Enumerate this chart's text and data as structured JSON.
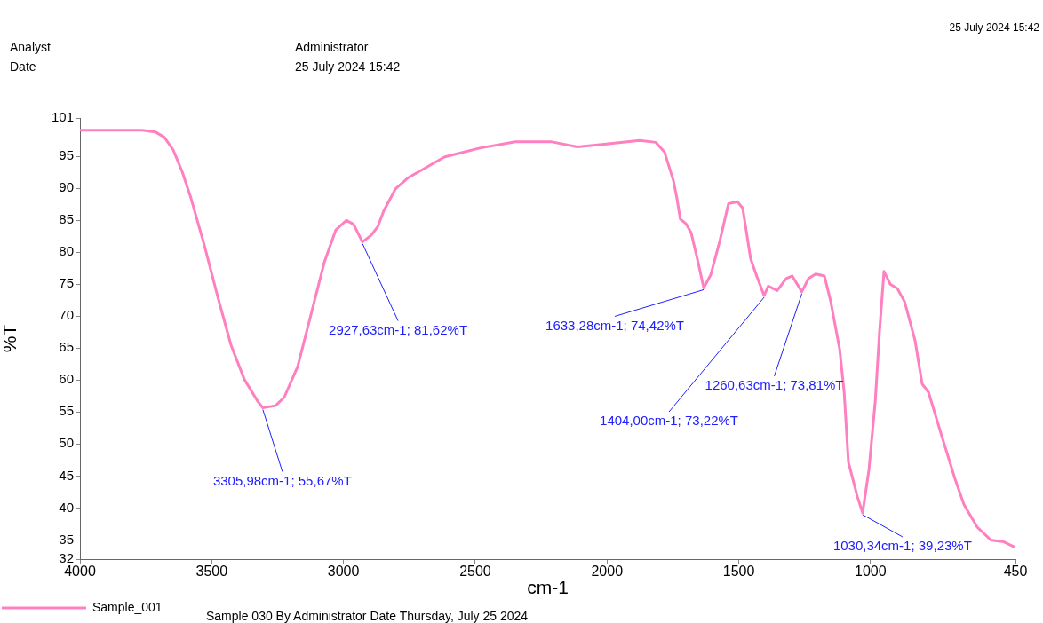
{
  "chart_data": {
    "type": "line",
    "xlabel": "cm-1",
    "ylabel": "%T",
    "xlim": [
      4000,
      450
    ],
    "xticks": [
      4000,
      3500,
      3000,
      2500,
      2000,
      1500,
      1000,
      450
    ],
    "ylim": [
      32,
      101
    ],
    "yticks": [
      32,
      35,
      40,
      45,
      50,
      55,
      60,
      65,
      70,
      75,
      80,
      85,
      90,
      95,
      101
    ],
    "grid": false,
    "legend": "bottom",
    "marker": "none",
    "line_style": "solid",
    "series": [
      {
        "name": "Sample_001",
        "color": "#ff80c0",
        "x": [
          4000,
          3764,
          3713,
          3680,
          3646,
          3612,
          3579,
          3528,
          3477,
          3427,
          3376,
          3326,
          3306,
          3258,
          3225,
          3174,
          3123,
          3073,
          3029,
          2989,
          2962,
          2928,
          2894,
          2870,
          2847,
          2803,
          2753,
          2685,
          2618,
          2483,
          2348,
          2213,
          2112,
          2011,
          1876,
          1815,
          1782,
          1748,
          1735,
          1722,
          1701,
          1681,
          1654,
          1633,
          1606,
          1573,
          1539,
          1505,
          1485,
          1455,
          1432,
          1404,
          1388,
          1354,
          1320,
          1297,
          1261,
          1235,
          1208,
          1175,
          1151,
          1117,
          1100,
          1084,
          1050,
          1030,
          1006,
          982,
          966,
          949,
          925,
          898,
          871,
          831,
          804,
          780,
          730,
          679,
          645,
          595,
          544,
          494,
          454
        ],
        "values": [
          99.1,
          99.1,
          98.8,
          98.0,
          96.0,
          92.6,
          88.5,
          81.1,
          73.0,
          65.5,
          60.1,
          56.7,
          55.67,
          56.0,
          57.3,
          62.1,
          70.3,
          78.4,
          83.5,
          85.0,
          84.4,
          81.62,
          82.7,
          84.0,
          86.5,
          89.9,
          91.7,
          93.3,
          94.9,
          96.3,
          97.3,
          97.3,
          96.5,
          96.9,
          97.5,
          97.2,
          95.7,
          91.2,
          88.5,
          85.2,
          84.5,
          83.1,
          78.4,
          74.42,
          76.5,
          81.6,
          87.6,
          87.9,
          86.9,
          79.0,
          76.3,
          73.22,
          74.7,
          74.0,
          75.9,
          76.3,
          73.81,
          75.9,
          76.6,
          76.3,
          72.3,
          64.8,
          58.1,
          47.2,
          41.8,
          39.23,
          46.0,
          56.7,
          67.5,
          77.0,
          75.0,
          74.3,
          72.3,
          66.2,
          59.4,
          58.1,
          51.3,
          44.5,
          40.5,
          37.0,
          35.0,
          34.7,
          33.9
        ]
      }
    ],
    "annotations": [
      "25 July 2024 15:42",
      "Analyst",
      "Administrator",
      "Date",
      "25 July 2024 15:42",
      "Sample 030 By Administrator Date Thursday, July 25 2024",
      {
        "text": "3305,98cm-1; 55,67%T",
        "x": 3305.98,
        "y": 55.67
      },
      {
        "text": "2927,63cm-1; 81,62%T",
        "x": 2927.63,
        "y": 81.62
      },
      {
        "text": "1633,28cm-1; 74,42%T",
        "x": 1633.28,
        "y": 74.42
      },
      {
        "text": "1404,00cm-1; 73,22%T",
        "x": 1404.0,
        "y": 73.22
      },
      {
        "text": "1260,63cm-1; 73,81%T",
        "x": 1260.63,
        "y": 73.81
      },
      {
        "text": "1030,34cm-1; 39,23%T",
        "x": 1030.34,
        "y": 39.23
      }
    ]
  }
}
